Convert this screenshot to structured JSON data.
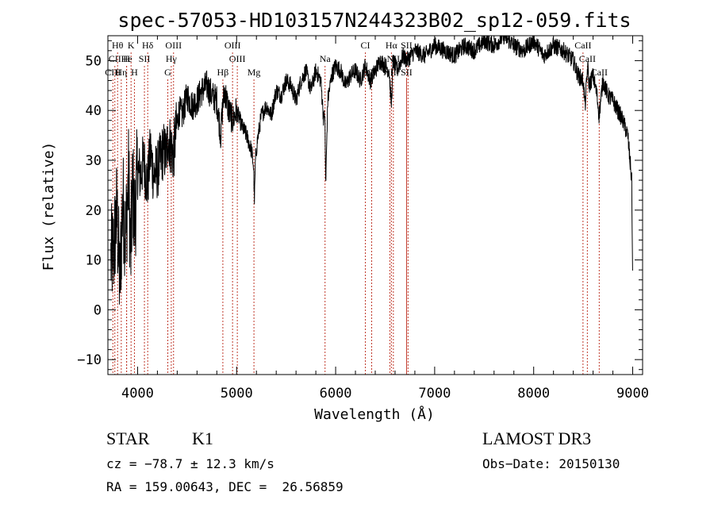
{
  "chart_data": {
    "type": "line",
    "title": "spec-57053-HD103157N244323B02_sp12-059.fits",
    "xlabel": "Wavelength (Å)",
    "ylabel": "Flux (relative)",
    "xlim": [
      3700,
      9100
    ],
    "ylim": [
      -13,
      55
    ],
    "xticks": [
      4000,
      5000,
      6000,
      7000,
      8000,
      9000
    ],
    "yticks": [
      -10,
      0,
      10,
      20,
      30,
      40,
      50
    ],
    "series": [
      {
        "name": "flux",
        "x": [
          3730,
          3760,
          3790,
          3820,
          3850,
          3880,
          3910,
          3930,
          3950,
          3970,
          4000,
          4030,
          4060,
          4100,
          4130,
          4160,
          4200,
          4230,
          4260,
          4290,
          4310,
          4330,
          4360,
          4390,
          4420,
          4450,
          4500,
          4550,
          4600,
          4650,
          4700,
          4750,
          4800,
          4840,
          4860,
          4880,
          4920,
          4960,
          5000,
          5050,
          5100,
          5150,
          5170,
          5180,
          5190,
          5210,
          5250,
          5300,
          5350,
          5400,
          5450,
          5500,
          5550,
          5600,
          5650,
          5700,
          5750,
          5800,
          5850,
          5880,
          5890,
          5900,
          5920,
          5960,
          6000,
          6050,
          6100,
          6150,
          6200,
          6250,
          6300,
          6350,
          6400,
          6450,
          6500,
          6540,
          6563,
          6580,
          6620,
          6680,
          6720,
          6800,
          6900,
          7000,
          7100,
          7200,
          7300,
          7400,
          7500,
          7600,
          7700,
          7800,
          7900,
          8000,
          8100,
          8200,
          8300,
          8400,
          8450,
          8500,
          8520,
          8545,
          8560,
          8600,
          8640,
          8660,
          8700,
          8750,
          8800,
          8850,
          8900,
          8950,
          8990,
          9000
        ],
        "values": [
          10,
          12,
          20,
          5,
          22,
          15,
          27,
          10,
          25,
          18,
          28,
          27,
          30,
          25,
          32,
          27,
          28,
          30,
          32,
          31,
          35,
          33,
          31,
          36,
          40,
          39,
          43,
          41,
          42,
          44,
          45,
          43,
          42,
          35,
          41,
          44,
          40,
          38,
          40,
          37,
          35,
          32,
          29,
          22,
          30,
          34,
          39,
          41,
          39,
          44,
          43,
          46,
          45,
          42,
          46,
          48,
          44,
          48,
          46,
          38,
          40,
          25,
          42,
          47,
          49,
          48,
          45,
          47,
          48,
          46,
          49,
          46,
          48,
          50,
          49,
          48,
          41,
          50,
          48,
          51,
          50,
          52,
          51,
          53,
          52,
          51,
          53,
          52,
          54,
          53,
          55,
          53,
          52,
          54,
          51,
          53,
          52,
          50,
          47,
          46,
          41,
          49,
          45,
          47,
          43,
          39,
          46,
          43,
          42,
          40,
          38,
          35,
          26,
          5
        ]
      }
    ],
    "spectral_lines": [
      {
        "label": "Hθ",
        "x": 3798,
        "row": 1
      },
      {
        "label": "K",
        "x": 3934,
        "row": 1
      },
      {
        "label": "Hδ",
        "x": 4102,
        "row": 1
      },
      {
        "label": "OIII",
        "x": 4363,
        "row": 1
      },
      {
        "label": "OIII",
        "x": 4959,
        "row": 1
      },
      {
        "label": "CI",
        "x": 6300,
        "row": 1
      },
      {
        "label": "Hα",
        "x": 6563,
        "row": 1
      },
      {
        "label": "SII",
        "x": 6716,
        "row": 1
      },
      {
        "label": "CaII",
        "x": 8498,
        "row": 1
      },
      {
        "label": "CII",
        "x": 3770,
        "row": 2
      },
      {
        "label": "He",
        "x": 3889,
        "row": 2
      },
      {
        "label": "H",
        "x": 3889,
        "row": 2
      },
      {
        "label": "SII",
        "x": 4069,
        "row": 2
      },
      {
        "label": "Hγ",
        "x": 4340,
        "row": 2
      },
      {
        "label": "OIII",
        "x": 5007,
        "row": 2
      },
      {
        "label": "Na",
        "x": 5893,
        "row": 2
      },
      {
        "label": "NII",
        "x": 6583,
        "row": 2
      },
      {
        "label": "II",
        "x": 6731,
        "row": 2
      },
      {
        "label": "CaII",
        "x": 8542,
        "row": 2
      },
      {
        "label": "CIII",
        "x": 3750,
        "row": 3
      },
      {
        "label": "Hη",
        "x": 3835,
        "row": 3
      },
      {
        "label": "H",
        "x": 3968,
        "row": 3
      },
      {
        "label": "G",
        "x": 4305,
        "row": 3
      },
      {
        "label": "Hβ",
        "x": 4861,
        "row": 3
      },
      {
        "label": "Mg",
        "x": 5175,
        "row": 3
      },
      {
        "label": "CI",
        "x": 6364,
        "row": 3
      },
      {
        "label": "NII",
        "x": 6548,
        "row": 3
      },
      {
        "label": "SII",
        "x": 6716,
        "row": 3
      },
      {
        "label": "CaII",
        "x": 8662,
        "row": 3
      }
    ]
  },
  "info": {
    "object_class": "STAR",
    "subclass": "K1",
    "survey": "LAMOST DR3",
    "cz": "cz = −78.7 ± 12.3 km/s",
    "obs_date": "Obs−Date: 20150130",
    "coords": "RA = 159.00643, DEC =  26.56859"
  }
}
